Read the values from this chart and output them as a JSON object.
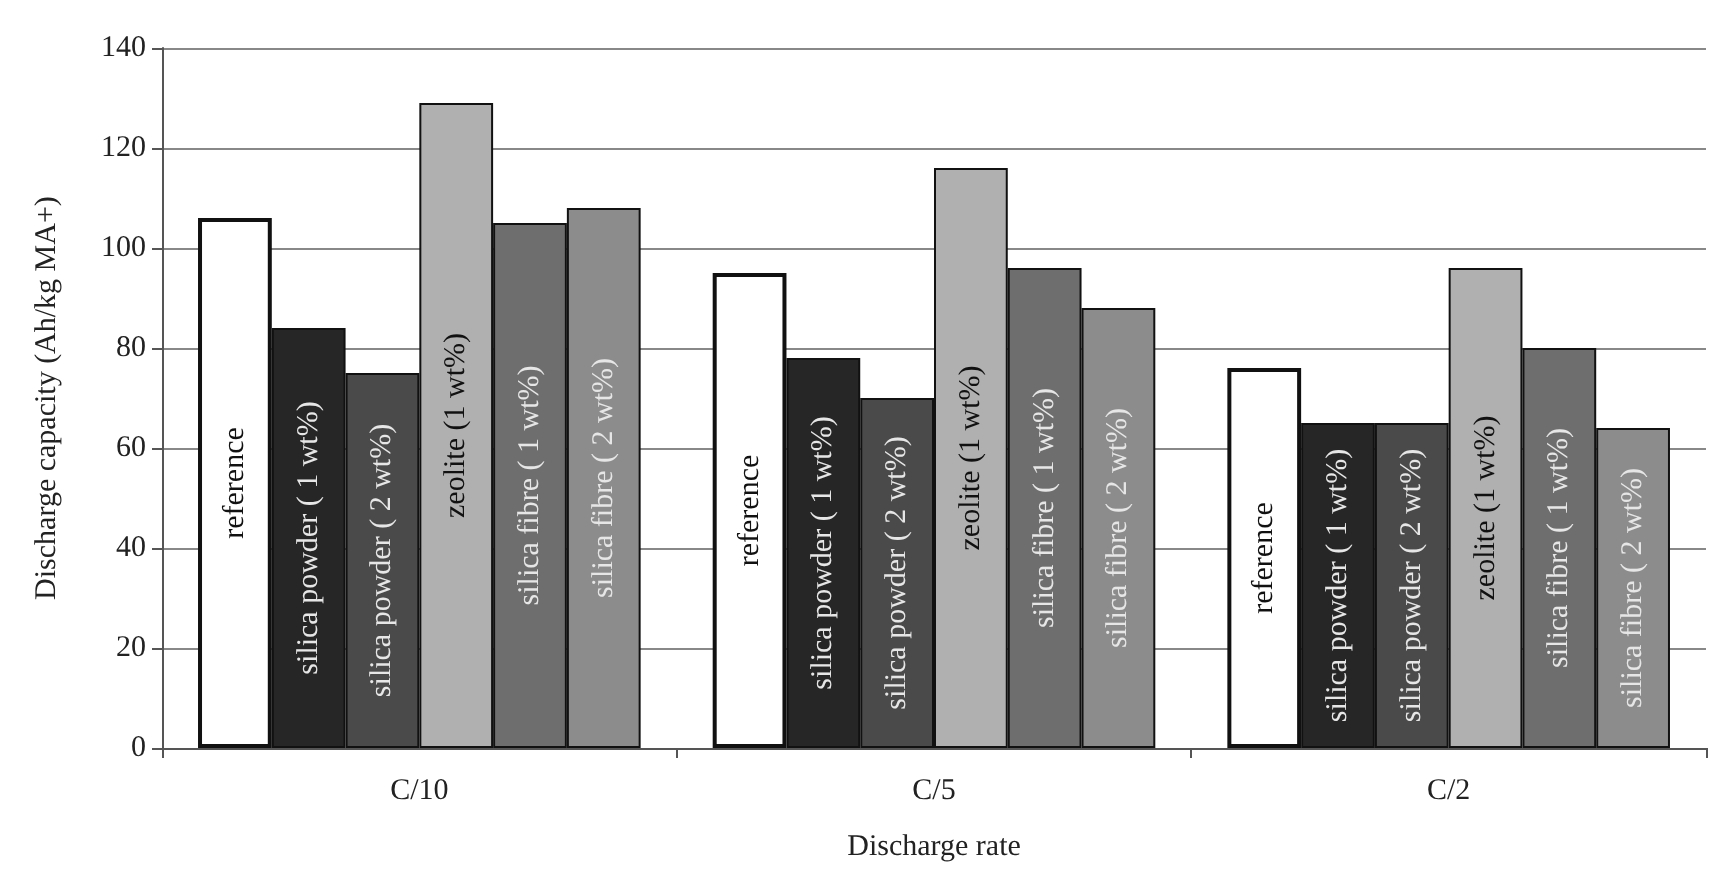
{
  "chart_data": {
    "type": "bar",
    "xlabel": "Discharge rate",
    "ylabel": "Discharge capacity (Ah/kg MA+)",
    "categories": [
      "C/10",
      "C/5",
      "C/2"
    ],
    "series": [
      {
        "name": "reference",
        "color": "#ffffff",
        "values": [
          106,
          95,
          76
        ]
      },
      {
        "name": "silica powder ( 1 wt%)",
        "color": "#262626",
        "values": [
          84,
          78,
          65
        ]
      },
      {
        "name": "silica powder ( 2 wt%)",
        "color": "#4a4a4a",
        "values": [
          75,
          70,
          65
        ]
      },
      {
        "name": "zeolite (1 wt%)",
        "color": "#b0b0b0",
        "values": [
          129,
          116,
          96
        ]
      },
      {
        "name": "silica fibre ( 1 wt%)",
        "color": "#6e6e6e",
        "values": [
          105,
          96,
          80
        ]
      },
      {
        "name": "silica fibre ( 2 wt%)",
        "color": "#8c8c8c",
        "values": [
          108,
          88,
          64
        ]
      }
    ],
    "ylim": [
      0,
      140
    ],
    "yticks": [
      0,
      20,
      40,
      60,
      80,
      100,
      120,
      140
    ],
    "grid": "y",
    "legend": false
  }
}
